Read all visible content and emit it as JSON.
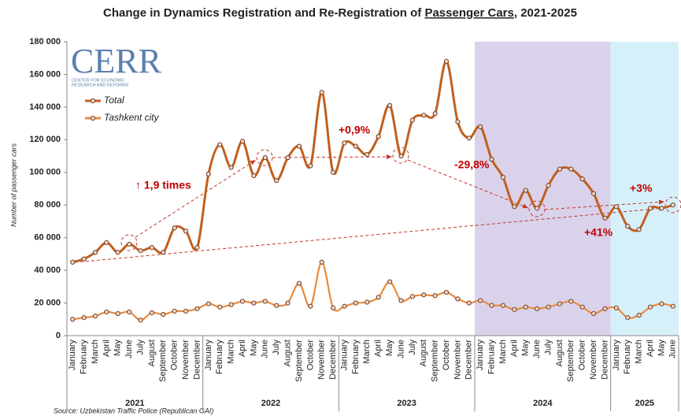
{
  "chart_data": {
    "type": "line",
    "title": {
      "before": "Change in Dynamics Registration and Re-Registration of ",
      "underlined": "Passenger Cars",
      "after": ", 2021-2025"
    },
    "ylabel": "Number of passenger cars",
    "source": "Source: Uzbekistan Traffic Police (Republican GAI)",
    "logo": {
      "text": "CERR",
      "lines": [
        "CENTER FOR ECONOMIC",
        "RESEARCH AND REFORMS"
      ]
    },
    "categories": [
      "January",
      "February",
      "March",
      "April",
      "May",
      "June",
      "July",
      "August",
      "September",
      "October",
      "November",
      "December",
      "January",
      "February",
      "March",
      "April",
      "May",
      "June",
      "July",
      "August",
      "September",
      "October",
      "November",
      "December",
      "January",
      "February",
      "March",
      "April",
      "May",
      "June",
      "July",
      "August",
      "September",
      "October",
      "November",
      "December",
      "January",
      "February",
      "March",
      "April",
      "May",
      "June",
      "July",
      "August",
      "September",
      "October",
      "November",
      "December",
      "January",
      "February",
      "March",
      "April",
      "May",
      "June"
    ],
    "years": [
      "2021",
      "2022",
      "2023",
      "2024",
      "2025"
    ],
    "series": [
      {
        "name": "Total",
        "color": "#c0601e",
        "values": [
          45000,
          47000,
          51000,
          57000,
          51000,
          56000,
          52000,
          54000,
          51000,
          66000,
          64000,
          54000,
          99000,
          117000,
          103000,
          119000,
          98000,
          109000,
          95000,
          109000,
          116000,
          104000,
          149000,
          100000,
          118000,
          116000,
          111000,
          122000,
          141000,
          110000,
          132000,
          135000,
          136000,
          168000,
          131000,
          121000,
          128000,
          108000,
          97000,
          79000,
          89000,
          78000,
          92000,
          102000,
          102000,
          96000,
          87000,
          72000,
          79000,
          67000,
          65000,
          78000,
          78000,
          80000
        ]
      },
      {
        "name": "Tashkent city",
        "color": "#ea8a3c",
        "values": [
          10000,
          11000,
          12000,
          14500,
          13500,
          14500,
          9500,
          14000,
          13000,
          15000,
          15000,
          16500,
          19500,
          17500,
          19000,
          21000,
          20000,
          21000,
          18500,
          20000,
          32000,
          18000,
          45000,
          17000,
          18000,
          20000,
          20500,
          23500,
          33000,
          21500,
          24000,
          25000,
          24500,
          26500,
          22500,
          20000,
          21500,
          18500,
          18500,
          16000,
          17500,
          16500,
          17500,
          19500,
          21000,
          17500,
          13500,
          16500,
          17000,
          11000,
          12500,
          17500,
          19500,
          18000
        ]
      }
    ],
    "annotations": [
      "↑ 1,9 times",
      "+0,9%",
      "-29,8%",
      "+3%",
      "+41%"
    ],
    "ylim": [
      0,
      180000
    ],
    "yticks": [
      0,
      {
        "value": 20000,
        "label": "20 000"
      },
      {
        "value": 40000,
        "label": "40 000"
      },
      {
        "value": 60000,
        "label": "60 000"
      },
      {
        "value": 80000,
        "label": "80 000"
      },
      {
        "value": 100000,
        "label": "100 000"
      },
      {
        "value": 120000,
        "label": "120 000"
      },
      {
        "value": 140000,
        "label": "140 000"
      },
      {
        "value": 160000,
        "label": "160 000"
      },
      {
        "value": 180000,
        "label": "180 000"
      }
    ],
    "grid": false,
    "shading": [
      {
        "year": 3,
        "color": "#d9d2ea"
      },
      {
        "year": 4,
        "color": "#d6f0fa"
      }
    ]
  }
}
